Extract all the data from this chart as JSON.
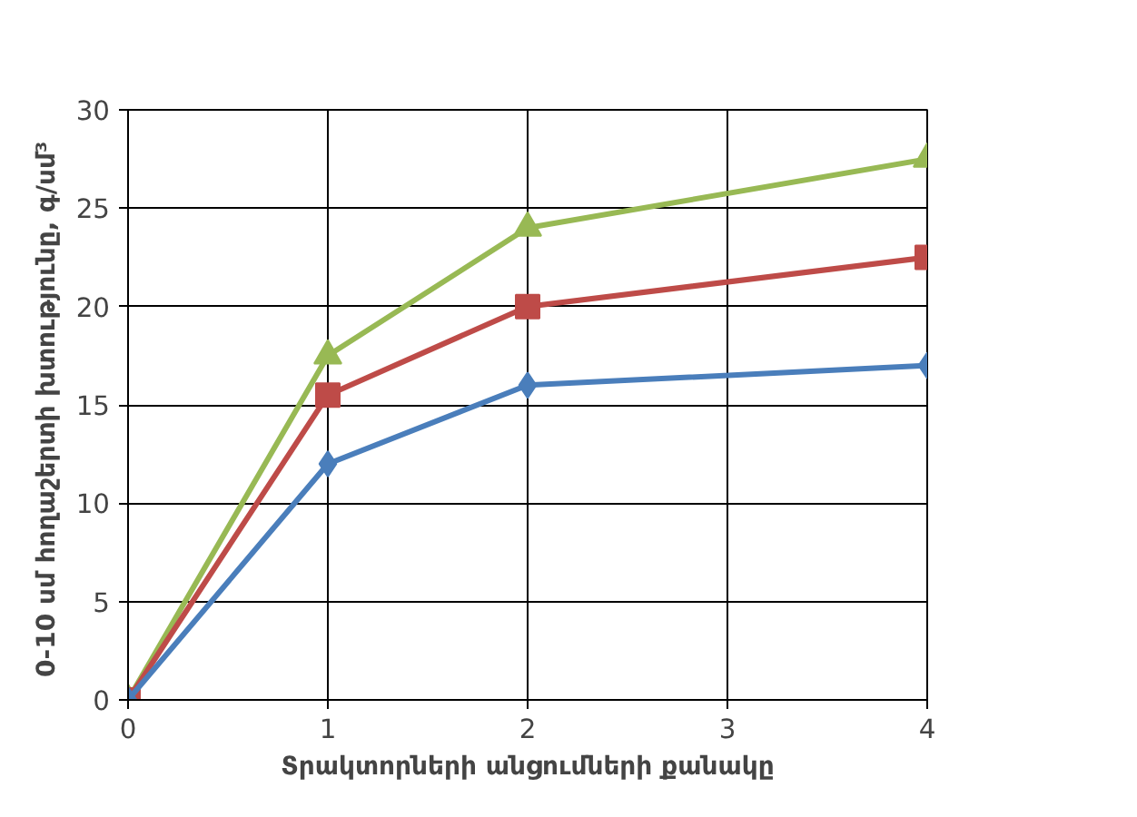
{
  "chart_data": {
    "type": "line",
    "xlabel": "Տրակտորների անցումների քանակը",
    "ylabel": "0-10 սմ  հողաշերտի խտությունը, գ/սմ³",
    "x": [
      0,
      1,
      2,
      4
    ],
    "xlim": [
      0,
      4
    ],
    "xticks": [
      0,
      1,
      2,
      3,
      4
    ],
    "ylim": [
      0,
      30
    ],
    "yticks": [
      0,
      5,
      10,
      15,
      20,
      25,
      30
    ],
    "grid": true,
    "line_style": "solid",
    "series": [
      {
        "color": "#98b954",
        "marker": "triangle",
        "values": [
          0,
          17.5,
          24,
          27.5
        ]
      },
      {
        "color": "#be4b48",
        "marker": "square",
        "values": [
          0,
          15.5,
          20,
          22.5
        ]
      },
      {
        "color": "#4a7ebb",
        "marker": "diamond",
        "values": [
          0,
          12,
          16,
          17
        ]
      }
    ]
  }
}
